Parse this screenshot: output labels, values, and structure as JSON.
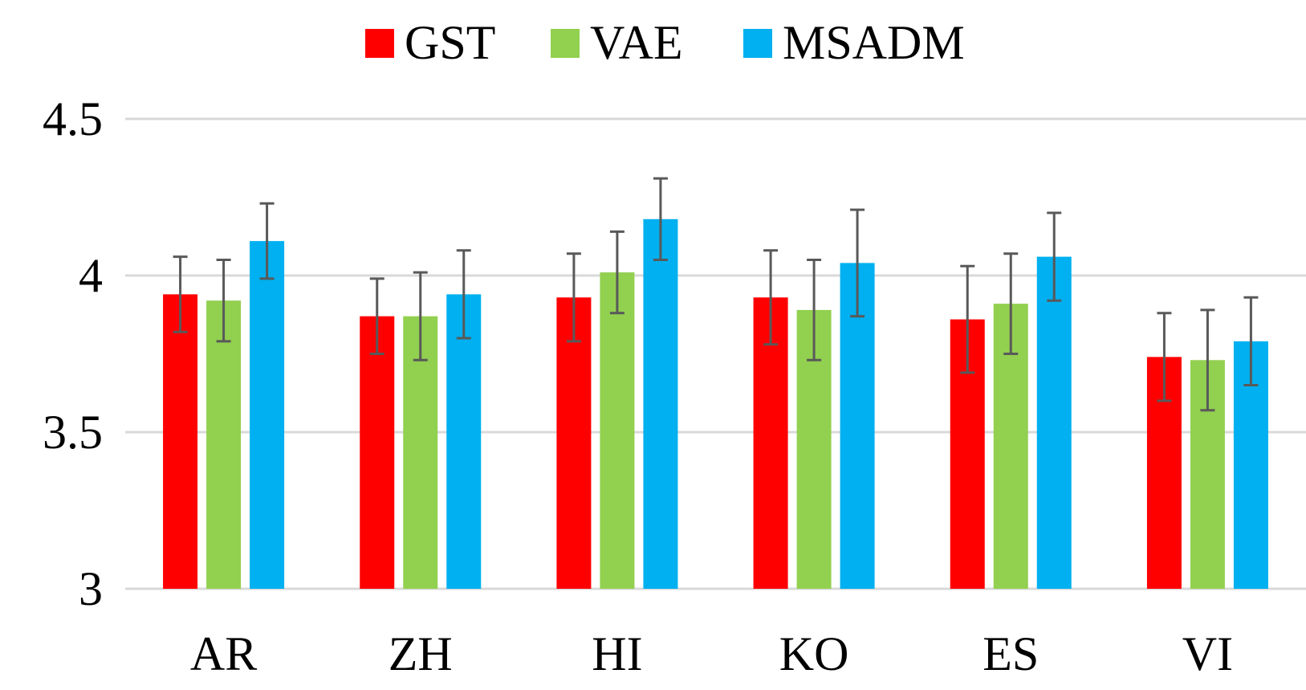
{
  "chart_data": {
    "type": "bar",
    "title": "",
    "xlabel": "",
    "ylabel": "",
    "ylim": [
      3,
      4.5
    ],
    "yticks": [
      "3",
      "3.5",
      "4",
      "4.5"
    ],
    "ytick_values": [
      3,
      3.5,
      4,
      4.5
    ],
    "grid": true,
    "legend_position": "top-center",
    "categories": [
      "AR",
      "ZH",
      "HI",
      "KO",
      "ES",
      "VI"
    ],
    "series": [
      {
        "name": "GST",
        "color": "#ff0000",
        "values": [
          3.94,
          3.87,
          3.93,
          3.93,
          3.86,
          3.74
        ],
        "errors": [
          0.12,
          0.12,
          0.14,
          0.15,
          0.17,
          0.14
        ]
      },
      {
        "name": "VAE",
        "color": "#92d050",
        "values": [
          3.92,
          3.87,
          4.01,
          3.89,
          3.91,
          3.73
        ],
        "errors": [
          0.13,
          0.14,
          0.13,
          0.16,
          0.16,
          0.16
        ]
      },
      {
        "name": "MSADM",
        "color": "#00b0f0",
        "values": [
          4.11,
          3.94,
          4.18,
          4.04,
          4.06,
          3.79
        ],
        "errors": [
          0.12,
          0.14,
          0.13,
          0.17,
          0.14,
          0.14
        ]
      }
    ]
  }
}
